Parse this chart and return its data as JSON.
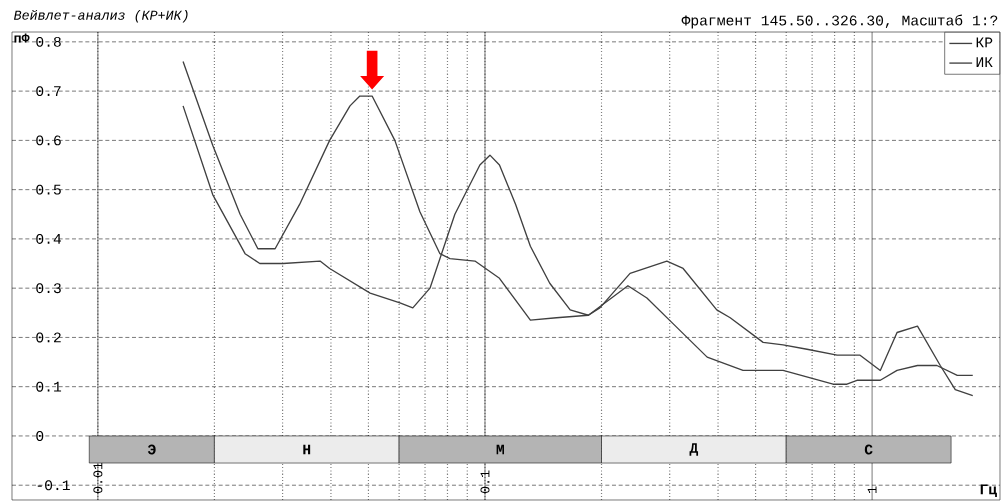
{
  "chart_data": {
    "type": "line",
    "title": "Вейвлет-анализ (КР+ИК)",
    "subtitle": "Фрагмент 145.50..326.30, Масштаб 1:?",
    "xlabel": "Гц",
    "ylabel": "пФ",
    "log": "x",
    "xlim": [
      0.006,
      2.14
    ],
    "xticks": [
      0.01,
      0.1,
      1
    ],
    "ylim": [
      -0.13,
      0.82
    ],
    "yticks": [
      -0.1,
      0,
      0.1,
      0.2,
      0.3,
      0.4,
      0.5,
      0.6,
      0.7,
      0.8
    ],
    "grid": true,
    "legend": "top right",
    "line_style": "solid",
    "marker": "none",
    "series": [
      {
        "name": "КР",
        "color": "#404040",
        "x": [
          0.0166,
          0.0198,
          0.0233,
          0.0259,
          0.0287,
          0.0332,
          0.0397,
          0.0448,
          0.0475,
          0.0511,
          0.0585,
          0.0679,
          0.0765,
          0.0812,
          0.0942,
          0.109,
          0.131,
          0.153,
          0.185,
          0.198,
          0.237,
          0.295,
          0.325,
          0.397,
          0.43,
          0.523,
          0.589,
          0.679,
          0.812,
          0.931,
          1.05,
          1.16,
          1.31,
          1.5,
          1.64,
          1.82
        ],
        "values": [
          0.76,
          0.59,
          0.45,
          0.38,
          0.38,
          0.47,
          0.6,
          0.67,
          0.69,
          0.69,
          0.6,
          0.455,
          0.37,
          0.36,
          0.355,
          0.32,
          0.235,
          0.24,
          0.245,
          0.26,
          0.33,
          0.355,
          0.34,
          0.256,
          0.24,
          0.19,
          0.185,
          0.176,
          0.164,
          0.164,
          0.133,
          0.21,
          0.223,
          0.143,
          0.094,
          0.082
        ]
      },
      {
        "name": "ИК",
        "color": "#404040",
        "x": [
          0.0166,
          0.0198,
          0.024,
          0.0262,
          0.0301,
          0.0375,
          0.0397,
          0.0505,
          0.0603,
          0.0651,
          0.0721,
          0.0836,
          0.0914,
          0.097,
          0.103,
          0.109,
          0.12,
          0.131,
          0.147,
          0.166,
          0.185,
          0.234,
          0.262,
          0.306,
          0.375,
          0.464,
          0.589,
          0.793,
          0.861,
          0.914,
          1.05,
          1.16,
          1.31,
          1.47,
          1.66,
          1.82
        ],
        "values": [
          0.67,
          0.49,
          0.37,
          0.35,
          0.35,
          0.355,
          0.34,
          0.29,
          0.27,
          0.26,
          0.3,
          0.45,
          0.51,
          0.55,
          0.57,
          0.55,
          0.47,
          0.385,
          0.31,
          0.256,
          0.245,
          0.305,
          0.28,
          0.228,
          0.16,
          0.133,
          0.133,
          0.105,
          0.105,
          0.113,
          0.113,
          0.133,
          0.143,
          0.143,
          0.123,
          0.123
        ]
      }
    ],
    "bands": [
      {
        "axis": "x",
        "from": 0.0095,
        "to": 0.02,
        "label": "Э",
        "color": "#b4b4b4"
      },
      {
        "axis": "x",
        "from": 0.02,
        "to": 0.06,
        "label": "Н",
        "color": "#ececec"
      },
      {
        "axis": "x",
        "from": 0.06,
        "to": 0.2,
        "label": "М",
        "color": "#b4b4b4"
      },
      {
        "axis": "x",
        "from": 0.2,
        "to": 0.6,
        "label": "Д",
        "color": "#ececec"
      },
      {
        "axis": "x",
        "from": 0.6,
        "to": 1.6,
        "label": "С",
        "color": "#b4b4b4"
      }
    ]
  }
}
